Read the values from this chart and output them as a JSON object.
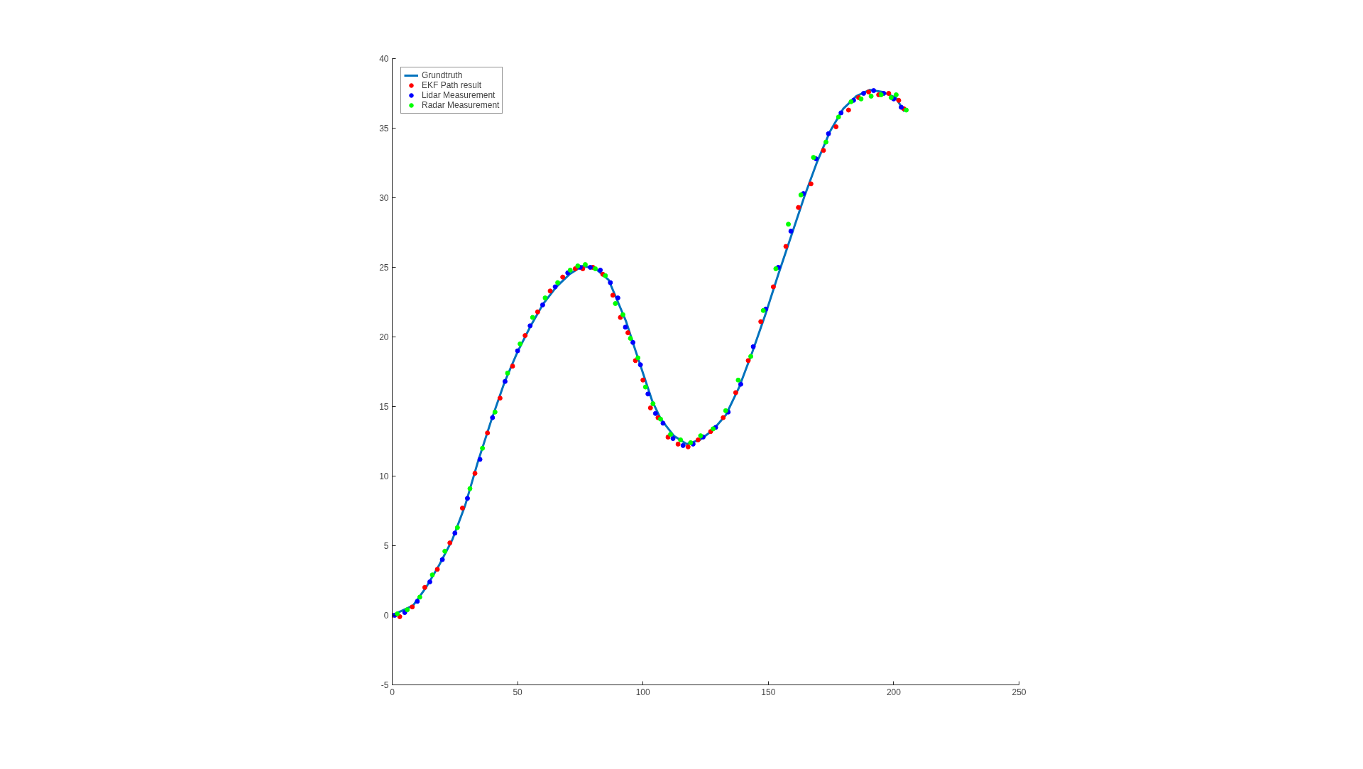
{
  "chart_data": {
    "type": "line",
    "xlim": [
      0,
      250
    ],
    "ylim": [
      -5,
      40
    ],
    "xticks": [
      0,
      50,
      100,
      150,
      200,
      250
    ],
    "yticks": [
      -5,
      0,
      5,
      10,
      15,
      20,
      25,
      30,
      35,
      40
    ],
    "grid": false,
    "legend": "top left",
    "series": [
      {
        "name": "Grundtruth",
        "color": "#0072bd",
        "marker": "none",
        "x": [
          0,
          8.3,
          13.5,
          18.7,
          23.9,
          29.1,
          34.3,
          39.5,
          44.7,
          49.9,
          55.1,
          60.3,
          65.5,
          70.7,
          75.9,
          81.1,
          86.3,
          89.8,
          93.3,
          96.7,
          100.2,
          103.7,
          107.1,
          112.3,
          117.5,
          122.7,
          127.9,
          133.1,
          138.4,
          143.6,
          148.8,
          154,
          159.2,
          164.4,
          169.5,
          174.7,
          179.9,
          185.1,
          190.4,
          195.6,
          200.8,
          204.2
        ],
        "values": [
          0,
          0.7,
          2.0,
          3.6,
          5.4,
          7.9,
          11.1,
          14.0,
          16.7,
          18.9,
          20.75,
          22.4,
          23.6,
          24.5,
          25.1,
          24.9,
          24.1,
          22.6,
          21.1,
          19.2,
          17.3,
          15.4,
          14.1,
          12.9,
          12.3,
          12.6,
          13.3,
          14.4,
          16.4,
          18.9,
          21.6,
          24.5,
          27.3,
          30.1,
          32.6,
          34.8,
          36.4,
          37.3,
          37.75,
          37.6,
          37.2,
          36.2
        ]
      },
      {
        "name": "EKF Path result",
        "type": "scatter",
        "color": "#ff0000",
        "marker": "circle",
        "x": [
          0,
          3,
          8,
          13,
          18,
          23,
          28,
          33,
          38,
          43,
          48,
          53,
          58,
          63,
          68,
          73,
          76,
          80,
          84,
          88,
          91,
          94,
          97,
          100,
          103,
          106,
          110,
          114,
          118,
          122,
          127,
          132,
          137,
          142,
          147,
          152,
          157,
          162,
          167,
          172,
          177,
          182,
          186,
          190,
          194,
          198,
          202,
          204
        ],
        "values": [
          0,
          -0.1,
          0.6,
          2.0,
          3.3,
          5.2,
          7.7,
          10.2,
          13.1,
          15.6,
          17.9,
          20.1,
          21.8,
          23.3,
          24.3,
          24.9,
          24.9,
          25.0,
          24.5,
          23.0,
          21.4,
          20.3,
          18.3,
          16.9,
          14.9,
          14.2,
          12.8,
          12.3,
          12.1,
          12.6,
          13.2,
          14.2,
          16.0,
          18.3,
          21.1,
          23.6,
          26.5,
          29.3,
          31.0,
          33.4,
          35.1,
          36.3,
          37.2,
          37.6,
          37.4,
          37.5,
          37.0,
          36.4
        ]
      },
      {
        "name": "Lidar Measurement",
        "type": "scatter",
        "color": "#0000ff",
        "marker": "circle",
        "x": [
          1,
          5,
          10,
          15,
          20,
          25,
          30,
          35,
          40,
          45,
          50,
          55,
          60,
          65,
          70,
          75,
          79,
          83,
          87,
          90,
          93,
          96,
          99,
          102,
          105,
          108,
          112,
          116,
          120,
          124,
          129,
          134,
          139,
          144,
          149,
          154,
          159,
          164,
          169,
          174,
          179,
          184,
          188,
          192,
          196,
          200,
          203
        ],
        "values": [
          0,
          0.2,
          1.0,
          2.4,
          4.0,
          5.9,
          8.4,
          11.2,
          14.2,
          16.8,
          19.0,
          20.8,
          22.3,
          23.6,
          24.6,
          25.0,
          25.0,
          24.8,
          23.9,
          22.8,
          20.7,
          19.6,
          18.0,
          15.9,
          14.5,
          13.8,
          12.7,
          12.2,
          12.3,
          12.8,
          13.5,
          14.6,
          16.6,
          19.3,
          22.0,
          25.0,
          27.6,
          30.3,
          32.8,
          34.6,
          36.1,
          37.0,
          37.5,
          37.7,
          37.5,
          37.1,
          36.5
        ]
      },
      {
        "name": "Radar Measurement",
        "type": "scatter",
        "color": "#00ff00",
        "marker": "circle",
        "x": [
          2,
          6,
          11,
          16,
          21,
          26,
          31,
          36,
          41,
          46,
          51,
          56,
          61,
          66,
          71,
          74,
          77,
          81,
          85,
          89,
          92,
          95,
          98,
          101,
          104,
          107,
          111,
          115,
          119,
          123,
          128,
          133,
          138,
          143,
          148,
          153,
          158,
          163,
          168,
          173,
          178,
          183,
          187,
          191,
          195,
          199,
          201,
          205
        ],
        "values": [
          0.1,
          0.4,
          1.3,
          2.9,
          4.6,
          6.3,
          9.1,
          12.0,
          14.6,
          17.4,
          19.5,
          21.4,
          22.8,
          23.9,
          24.8,
          25.1,
          25.2,
          24.9,
          24.4,
          22.4,
          21.6,
          19.9,
          18.5,
          16.4,
          15.2,
          14.1,
          13.0,
          12.6,
          12.4,
          12.9,
          13.4,
          14.7,
          16.9,
          18.6,
          21.9,
          24.9,
          28.1,
          30.2,
          32.9,
          34.0,
          35.8,
          36.9,
          37.1,
          37.3,
          37.4,
          37.2,
          37.4,
          36.3
        ]
      }
    ]
  }
}
